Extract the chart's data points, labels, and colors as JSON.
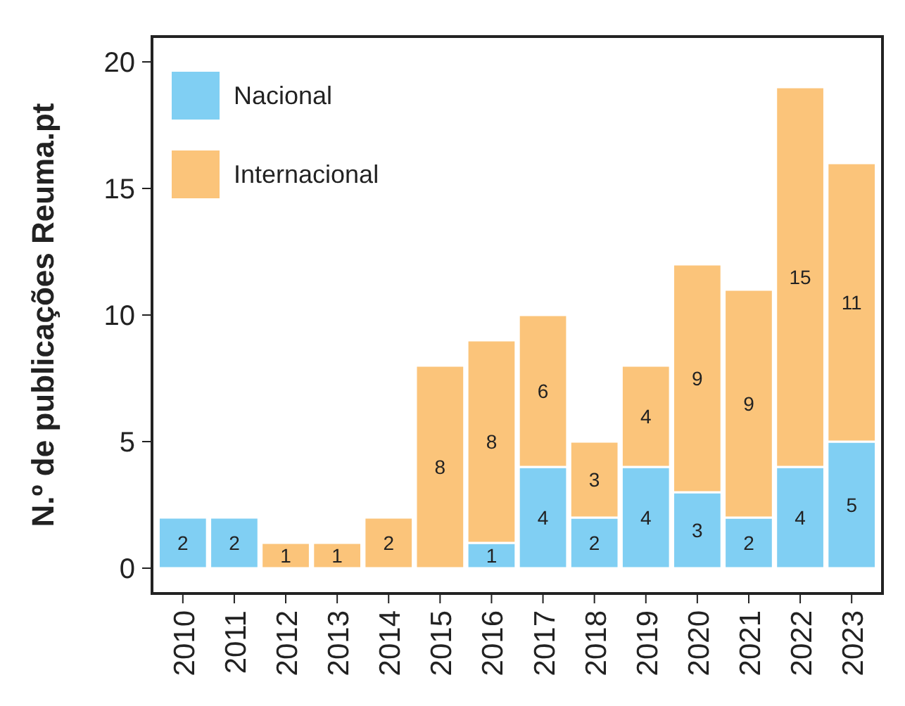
{
  "chart_data": {
    "type": "bar",
    "stacked": true,
    "ylabel": "N.º de publicações Reuma.pt",
    "categories": [
      "2010",
      "2011",
      "2012",
      "2013",
      "2014",
      "2015",
      "2016",
      "2017",
      "2018",
      "2019",
      "2020",
      "2021",
      "2022",
      "2023"
    ],
    "series": [
      {
        "name": "Nacional",
        "color": "#80cff3",
        "values": [
          2,
          2,
          0,
          0,
          0,
          0,
          1,
          4,
          2,
          4,
          3,
          2,
          4,
          5
        ],
        "value_labels": [
          "2",
          "2",
          null,
          null,
          null,
          null,
          "1",
          "4",
          "2",
          "4",
          "3",
          "2",
          "4",
          "5"
        ]
      },
      {
        "name": "Internacional",
        "color": "#fbc47a",
        "values": [
          0,
          0,
          1,
          1,
          2,
          8,
          8,
          6,
          3,
          4,
          9,
          9,
          15,
          11
        ],
        "value_labels": [
          null,
          null,
          "1",
          "1",
          "2",
          "8",
          "8",
          "6",
          "3",
          "4",
          "9",
          "9",
          "15",
          "11"
        ]
      }
    ],
    "ylim": [
      -1,
      21
    ],
    "yticks": [
      0,
      5,
      10,
      15,
      20
    ],
    "grid": false,
    "legend": "top left"
  }
}
